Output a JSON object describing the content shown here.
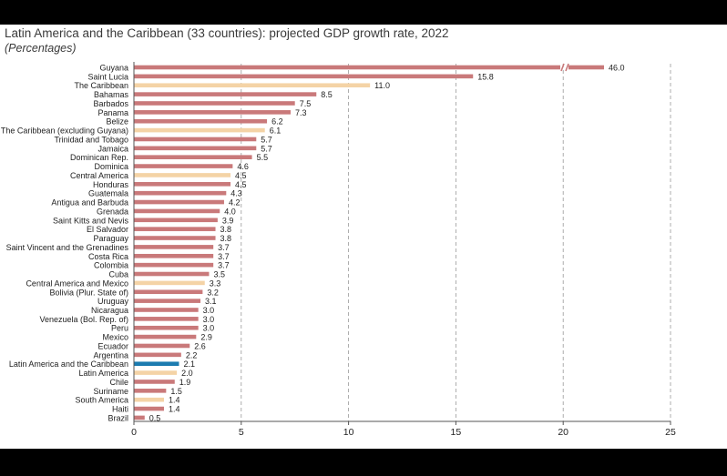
{
  "header": {
    "title": "Latin America and the Caribbean (33 countries): projected GDP growth rate, 2022",
    "subtitle": "(Percentages)"
  },
  "colors": {
    "country": "#c9797a",
    "subregion": "#f4d3a6",
    "region": "#1b7bb0",
    "grid": "#9a9a9a",
    "axis": "#555555"
  },
  "chart_data": {
    "type": "bar",
    "orientation": "horizontal",
    "title": "Latin America and the Caribbean (33 countries): projected GDP growth rate, 2022",
    "subtitle": "(Percentages)",
    "xlim": [
      0,
      25
    ],
    "xticks": [
      0,
      5,
      10,
      15,
      20,
      25
    ],
    "grid": "vertical dashed",
    "axis_break": "Guyana bar broken near 20",
    "categories": [
      "Guyana",
      "Saint Lucia",
      "The Caribbean",
      "Bahamas",
      "Barbados",
      "Panama",
      "Belize",
      "The Caribbean (excluding Guyana)",
      "Trinidad and Tobago",
      "Jamaica",
      "Dominican Rep.",
      "Dominica",
      "Central America",
      "Honduras",
      "Guatemala",
      "Antigua and Barbuda",
      "Grenada",
      "Saint Kitts and Nevis",
      "El Salvador",
      "Paraguay",
      "Saint Vincent and the Grenadines",
      "Costa Rica",
      "Colombia",
      "Cuba",
      "Central America and Mexico",
      "Bolivia (Plur. State of)",
      "Uruguay",
      "Nicaragua",
      "Venezuela (Bol. Rep. of)",
      "Peru",
      "Mexico",
      "Ecuador",
      "Argentina",
      "Latin America and the Caribbean",
      "Latin America",
      "Chile",
      "Suriname",
      "South America",
      "Haiti",
      "Brazil"
    ],
    "values": [
      46.0,
      15.8,
      11.0,
      8.5,
      7.5,
      7.3,
      6.2,
      6.1,
      5.7,
      5.7,
      5.5,
      4.6,
      4.5,
      4.5,
      4.3,
      4.2,
      4.0,
      3.9,
      3.8,
      3.8,
      3.7,
      3.7,
      3.7,
      3.5,
      3.3,
      3.2,
      3.1,
      3.0,
      3.0,
      3.0,
      2.9,
      2.6,
      2.2,
      2.1,
      2.0,
      1.9,
      1.5,
      1.4,
      1.4,
      0.5
    ],
    "value_labels": [
      "46.0",
      "15.8",
      "11.0",
      "8.5",
      "7.5",
      "7.3",
      "6.2",
      "6.1",
      "5.7",
      "5.7",
      "5.5",
      "4.6",
      "4.5",
      "4.5",
      "4.3",
      "4.2",
      "4.0",
      "3.9",
      "3.8",
      "3.8",
      "3.7",
      "3.7",
      "3.7",
      "3.5",
      "3.3",
      "3.2",
      "3.1",
      "3.0",
      "3.0",
      "3.0",
      "2.9",
      "2.6",
      "2.2",
      "2.1",
      "2.0",
      "1.9",
      "1.5",
      "1.4",
      "1.4",
      "0.5"
    ],
    "group": [
      "country",
      "country",
      "subregion",
      "country",
      "country",
      "country",
      "country",
      "subregion",
      "country",
      "country",
      "country",
      "country",
      "subregion",
      "country",
      "country",
      "country",
      "country",
      "country",
      "country",
      "country",
      "country",
      "country",
      "country",
      "country",
      "subregion",
      "country",
      "country",
      "country",
      "country",
      "country",
      "country",
      "country",
      "country",
      "region",
      "subregion",
      "country",
      "country",
      "subregion",
      "country",
      "country"
    ]
  }
}
